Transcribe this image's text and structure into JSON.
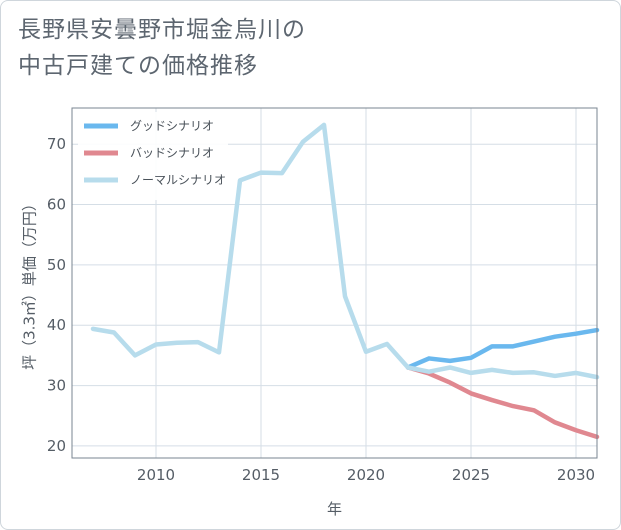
{
  "title_line1": "長野県安曇野市堀金烏川の",
  "title_line2": "中古戸建ての価格推移",
  "colors": {
    "good": "#6ab8ee",
    "bad": "#e08890",
    "normal": "#b7dcec",
    "grid": "#d5dee6",
    "border": "#7a8590"
  },
  "chart_data": {
    "type": "line",
    "title": "長野県安曇野市堀金烏川の中古戸建ての価格推移",
    "xlabel": "年",
    "ylabel": "坪（3.3㎡）単価（万円）",
    "xlim": [
      2006,
      2031
    ],
    "ylim": [
      18,
      76
    ],
    "x_ticks": [
      2010,
      2015,
      2020,
      2025,
      2030
    ],
    "y_ticks": [
      20,
      30,
      40,
      50,
      60,
      70
    ],
    "legend_position": "top-left",
    "series": [
      {
        "key": "good",
        "name": "グッドシナリオ",
        "x": [
          2022,
          2023,
          2024,
          2025,
          2026,
          2027,
          2028,
          2029,
          2030,
          2031
        ],
        "values": [
          33.0,
          34.5,
          34.1,
          34.6,
          36.5,
          36.5,
          37.3,
          38.1,
          38.6,
          39.2
        ]
      },
      {
        "key": "bad",
        "name": "バッドシナリオ",
        "x": [
          2022,
          2023,
          2024,
          2025,
          2026,
          2027,
          2028,
          2029,
          2030,
          2031
        ],
        "values": [
          33.0,
          32.0,
          30.5,
          28.7,
          27.6,
          26.6,
          25.9,
          23.9,
          22.6,
          21.5
        ]
      },
      {
        "key": "normal",
        "name": "ノーマルシナリオ",
        "x": [
          2007,
          2008,
          2009,
          2010,
          2011,
          2012,
          2013,
          2014,
          2015,
          2016,
          2017,
          2018,
          2019,
          2020,
          2021,
          2022,
          2023,
          2024,
          2025,
          2026,
          2027,
          2028,
          2029,
          2030,
          2031
        ],
        "values": [
          39.4,
          38.8,
          35.0,
          36.8,
          37.1,
          37.2,
          35.5,
          64.0,
          65.3,
          65.2,
          70.4,
          73.2,
          44.8,
          35.6,
          36.9,
          33.0,
          32.3,
          33.0,
          32.1,
          32.6,
          32.1,
          32.2,
          31.6,
          32.1,
          31.4
        ]
      }
    ]
  }
}
